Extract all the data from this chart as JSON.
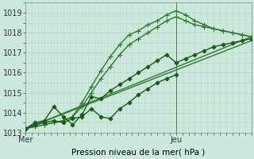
{
  "xlabel": "Pression niveau de la mer( hPa )",
  "bg_color": "#cce8dc",
  "grid_color": "#b8d8c8",
  "line_color_light": "#2d7a2d",
  "line_color_dark": "#1a5a1a",
  "ylim": [
    1013.0,
    1019.5
  ],
  "yticks": [
    1013,
    1014,
    1015,
    1016,
    1017,
    1018,
    1019
  ],
  "xlim": [
    0,
    72
  ],
  "x_mer": 0,
  "x_jeu": 48,
  "mer_label": "Mer",
  "jeu_label": "Jeu",
  "series": [
    {
      "name": "line1_straight",
      "x": [
        0,
        72
      ],
      "y": [
        1013.2,
        1017.8
      ],
      "color": "#2d7a2d",
      "lw": 1.0,
      "marker": "None",
      "ms": 0
    },
    {
      "name": "line2_straight",
      "x": [
        0,
        72
      ],
      "y": [
        1013.2,
        1017.6
      ],
      "color": "#2d7a2d",
      "lw": 1.0,
      "marker": "None",
      "ms": 0
    },
    {
      "name": "line3_markers_upper",
      "x": [
        0,
        3,
        6,
        9,
        12,
        15,
        18,
        21,
        24,
        27,
        30,
        33,
        36,
        39,
        42,
        45,
        48,
        51,
        54,
        57,
        60,
        63,
        66,
        69,
        72
      ],
      "y": [
        1013.2,
        1013.3,
        1013.4,
        1013.5,
        1013.6,
        1013.8,
        1014.5,
        1015.3,
        1016.1,
        1016.8,
        1017.4,
        1017.9,
        1018.1,
        1018.4,
        1018.6,
        1018.9,
        1019.1,
        1018.9,
        1018.6,
        1018.4,
        1018.2,
        1018.1,
        1018.0,
        1017.9,
        1017.8
      ],
      "color": "#2d7a2d",
      "lw": 1.0,
      "marker": "+",
      "ms": 4
    },
    {
      "name": "line4_markers_lower",
      "x": [
        0,
        3,
        6,
        9,
        12,
        15,
        18,
        21,
        24,
        27,
        30,
        33,
        36,
        39,
        42,
        45,
        48,
        51,
        54,
        57,
        60,
        63,
        66,
        69,
        72
      ],
      "y": [
        1013.2,
        1013.3,
        1013.4,
        1013.5,
        1013.6,
        1013.8,
        1014.3,
        1015.0,
        1015.7,
        1016.3,
        1016.9,
        1017.4,
        1017.7,
        1018.0,
        1018.3,
        1018.6,
        1018.8,
        1018.6,
        1018.4,
        1018.3,
        1018.2,
        1018.1,
        1018.0,
        1017.9,
        1017.8
      ],
      "color": "#2d7a2d",
      "lw": 1.0,
      "marker": "+",
      "ms": 4
    },
    {
      "name": "line5_zigzag",
      "x": [
        0,
        3,
        6,
        9,
        12,
        15,
        18,
        21,
        24,
        27,
        30,
        33,
        36,
        39,
        42,
        45,
        48
      ],
      "y": [
        1013.2,
        1013.4,
        1013.5,
        1013.6,
        1013.5,
        1013.7,
        1013.8,
        1014.2,
        1013.8,
        1013.7,
        1014.2,
        1014.5,
        1014.9,
        1015.2,
        1015.5,
        1015.7,
        1015.9
      ],
      "color": "#1a5a1a",
      "lw": 1.0,
      "marker": "D",
      "ms": 2.5
    },
    {
      "name": "line6_zigzag2",
      "x": [
        0,
        3,
        6,
        9,
        12,
        15,
        18,
        21,
        24,
        27,
        30,
        33,
        36,
        39,
        42,
        45,
        48,
        51,
        54,
        57,
        60,
        63,
        66,
        69,
        72
      ],
      "y": [
        1013.2,
        1013.5,
        1013.6,
        1014.3,
        1013.8,
        1013.4,
        1013.9,
        1014.8,
        1014.7,
        1015.1,
        1015.4,
        1015.7,
        1016.0,
        1016.3,
        1016.6,
        1016.9,
        1016.5,
        1016.7,
        1016.9,
        1017.1,
        1017.3,
        1017.4,
        1017.5,
        1017.6,
        1017.7
      ],
      "color": "#1a5a1a",
      "lw": 1.0,
      "marker": "D",
      "ms": 2.5
    }
  ]
}
